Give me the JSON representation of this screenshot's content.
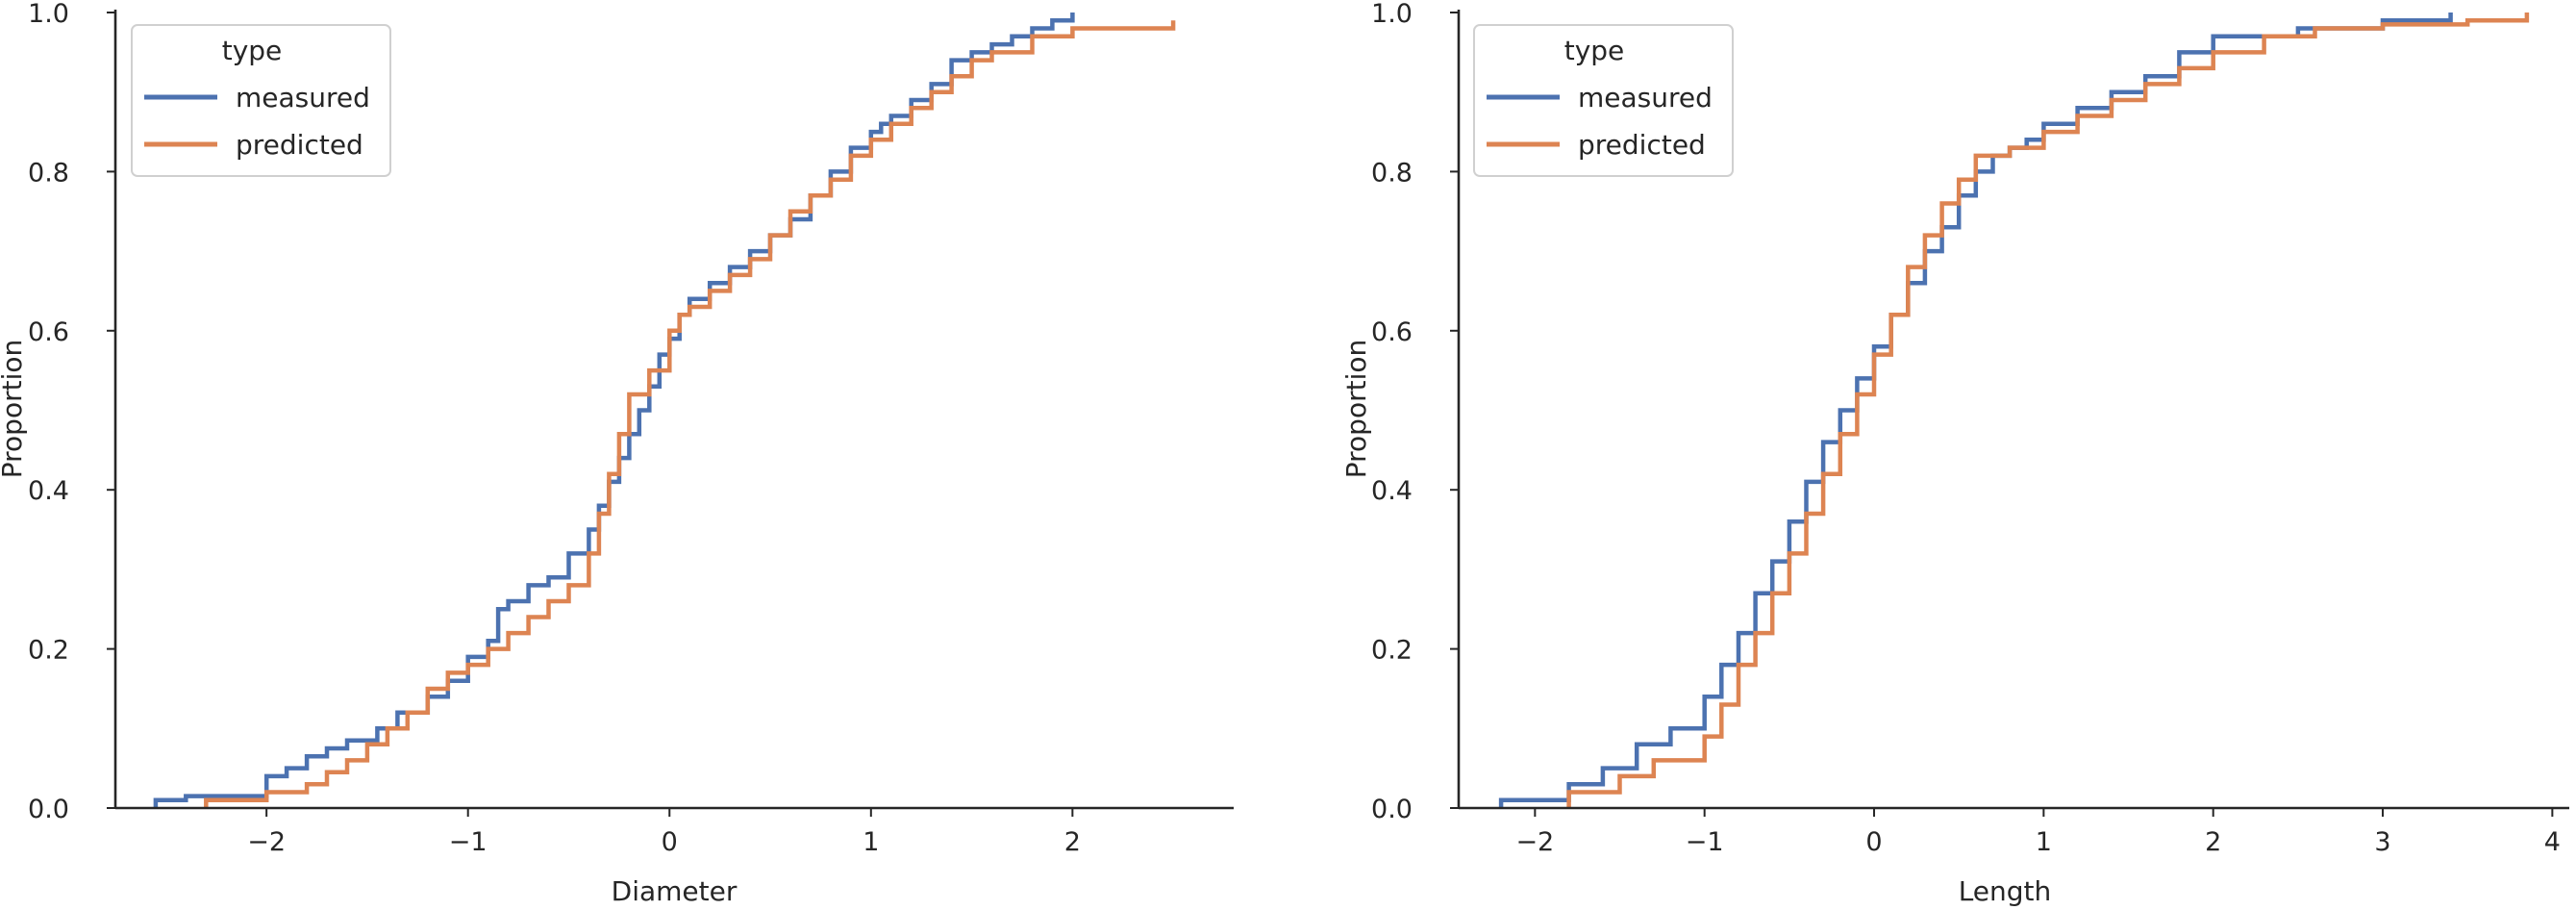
{
  "chart_data": [
    {
      "type": "line",
      "subtype": "ecdf",
      "title": "",
      "xlabel": "Diameter",
      "ylabel": "Proportion",
      "xlim": [
        -2.75,
        2.8
      ],
      "ylim": [
        0,
        1
      ],
      "xticks": [
        -2,
        -1,
        0,
        1,
        2
      ],
      "xtick_labels": [
        "−2",
        "−1",
        "0",
        "1",
        "2"
      ],
      "yticks": [
        0.0,
        0.2,
        0.4,
        0.6,
        0.8,
        1.0
      ],
      "ytick_labels": [
        "0.0",
        "0.2",
        "0.4",
        "0.6",
        "0.8",
        "1.0"
      ],
      "legend": {
        "title": "type",
        "placement": "top-left",
        "entries": [
          "measured",
          "predicted"
        ]
      },
      "series": [
        {
          "name": "measured",
          "color": "#4c72b0",
          "x": [
            -2.55,
            -2.4,
            -2.0,
            -1.9,
            -1.8,
            -1.7,
            -1.6,
            -1.45,
            -1.35,
            -1.2,
            -1.1,
            -1.0,
            -0.9,
            -0.85,
            -0.8,
            -0.7,
            -0.6,
            -0.5,
            -0.4,
            -0.35,
            -0.3,
            -0.25,
            -0.2,
            -0.15,
            -0.1,
            -0.05,
            0.0,
            0.05,
            0.1,
            0.2,
            0.3,
            0.4,
            0.5,
            0.6,
            0.7,
            0.8,
            0.9,
            1.0,
            1.05,
            1.1,
            1.2,
            1.3,
            1.4,
            1.5,
            1.6,
            1.7,
            1.8,
            1.9,
            2.0
          ],
          "y": [
            0.01,
            0.015,
            0.04,
            0.05,
            0.065,
            0.075,
            0.085,
            0.1,
            0.12,
            0.14,
            0.16,
            0.19,
            0.21,
            0.25,
            0.26,
            0.28,
            0.29,
            0.32,
            0.35,
            0.38,
            0.41,
            0.44,
            0.47,
            0.5,
            0.53,
            0.57,
            0.59,
            0.62,
            0.64,
            0.66,
            0.68,
            0.7,
            0.72,
            0.74,
            0.77,
            0.8,
            0.83,
            0.85,
            0.86,
            0.87,
            0.89,
            0.91,
            0.94,
            0.95,
            0.96,
            0.97,
            0.98,
            0.99,
            1.0
          ]
        },
        {
          "name": "predicted",
          "color": "#dd8452",
          "x": [
            -2.3,
            -2.0,
            -1.8,
            -1.7,
            -1.6,
            -1.5,
            -1.4,
            -1.3,
            -1.2,
            -1.1,
            -1.0,
            -0.9,
            -0.8,
            -0.7,
            -0.6,
            -0.5,
            -0.4,
            -0.35,
            -0.3,
            -0.25,
            -0.2,
            -0.1,
            0.0,
            0.05,
            0.1,
            0.2,
            0.3,
            0.4,
            0.5,
            0.6,
            0.7,
            0.8,
            0.9,
            1.0,
            1.1,
            1.2,
            1.3,
            1.4,
            1.5,
            1.6,
            1.8,
            2.0,
            2.5
          ],
          "y": [
            0.01,
            0.02,
            0.03,
            0.045,
            0.06,
            0.08,
            0.1,
            0.12,
            0.15,
            0.17,
            0.18,
            0.2,
            0.22,
            0.24,
            0.26,
            0.28,
            0.32,
            0.37,
            0.42,
            0.47,
            0.52,
            0.55,
            0.6,
            0.62,
            0.63,
            0.65,
            0.67,
            0.69,
            0.72,
            0.75,
            0.77,
            0.79,
            0.82,
            0.84,
            0.86,
            0.88,
            0.9,
            0.92,
            0.94,
            0.95,
            0.97,
            0.98,
            0.99
          ]
        }
      ]
    },
    {
      "type": "line",
      "subtype": "ecdf",
      "title": "",
      "xlabel": "Length",
      "ylabel": "Proportion",
      "xlim": [
        -2.45,
        4.1
      ],
      "ylim": [
        0,
        1
      ],
      "xticks": [
        -2,
        -1,
        0,
        1,
        2,
        3,
        4
      ],
      "xtick_labels": [
        "−2",
        "−1",
        "0",
        "1",
        "2",
        "3",
        "4"
      ],
      "yticks": [
        0.0,
        0.2,
        0.4,
        0.6,
        0.8,
        1.0
      ],
      "ytick_labels": [
        "0.0",
        "0.2",
        "0.4",
        "0.6",
        "0.8",
        "1.0"
      ],
      "legend": {
        "title": "type",
        "placement": "top-left",
        "entries": [
          "measured",
          "predicted"
        ]
      },
      "series": [
        {
          "name": "measured",
          "color": "#4c72b0",
          "x": [
            -2.2,
            -1.8,
            -1.6,
            -1.4,
            -1.2,
            -1.0,
            -0.9,
            -0.8,
            -0.7,
            -0.6,
            -0.5,
            -0.4,
            -0.3,
            -0.2,
            -0.1,
            0.0,
            0.1,
            0.2,
            0.3,
            0.4,
            0.5,
            0.6,
            0.7,
            0.8,
            0.9,
            1.0,
            1.2,
            1.4,
            1.6,
            1.8,
            2.0,
            2.5,
            3.0,
            3.4
          ],
          "y": [
            0.01,
            0.03,
            0.05,
            0.08,
            0.1,
            0.14,
            0.18,
            0.22,
            0.27,
            0.31,
            0.36,
            0.41,
            0.46,
            0.5,
            0.54,
            0.58,
            0.62,
            0.66,
            0.7,
            0.73,
            0.77,
            0.8,
            0.82,
            0.83,
            0.84,
            0.86,
            0.88,
            0.9,
            0.92,
            0.95,
            0.97,
            0.98,
            0.99,
            1.0
          ]
        },
        {
          "name": "predicted",
          "color": "#dd8452",
          "x": [
            -1.8,
            -1.5,
            -1.3,
            -1.0,
            -0.9,
            -0.8,
            -0.7,
            -0.6,
            -0.5,
            -0.4,
            -0.3,
            -0.2,
            -0.1,
            0.0,
            0.1,
            0.2,
            0.3,
            0.4,
            0.5,
            0.6,
            0.8,
            1.0,
            1.2,
            1.4,
            1.6,
            1.8,
            2.0,
            2.3,
            2.6,
            3.0,
            3.5,
            3.85
          ],
          "y": [
            0.02,
            0.04,
            0.06,
            0.09,
            0.13,
            0.18,
            0.22,
            0.27,
            0.32,
            0.37,
            0.42,
            0.47,
            0.52,
            0.57,
            0.62,
            0.68,
            0.72,
            0.76,
            0.79,
            0.82,
            0.83,
            0.85,
            0.87,
            0.89,
            0.91,
            0.93,
            0.95,
            0.97,
            0.98,
            0.985,
            0.99,
            1.0
          ]
        }
      ]
    }
  ]
}
